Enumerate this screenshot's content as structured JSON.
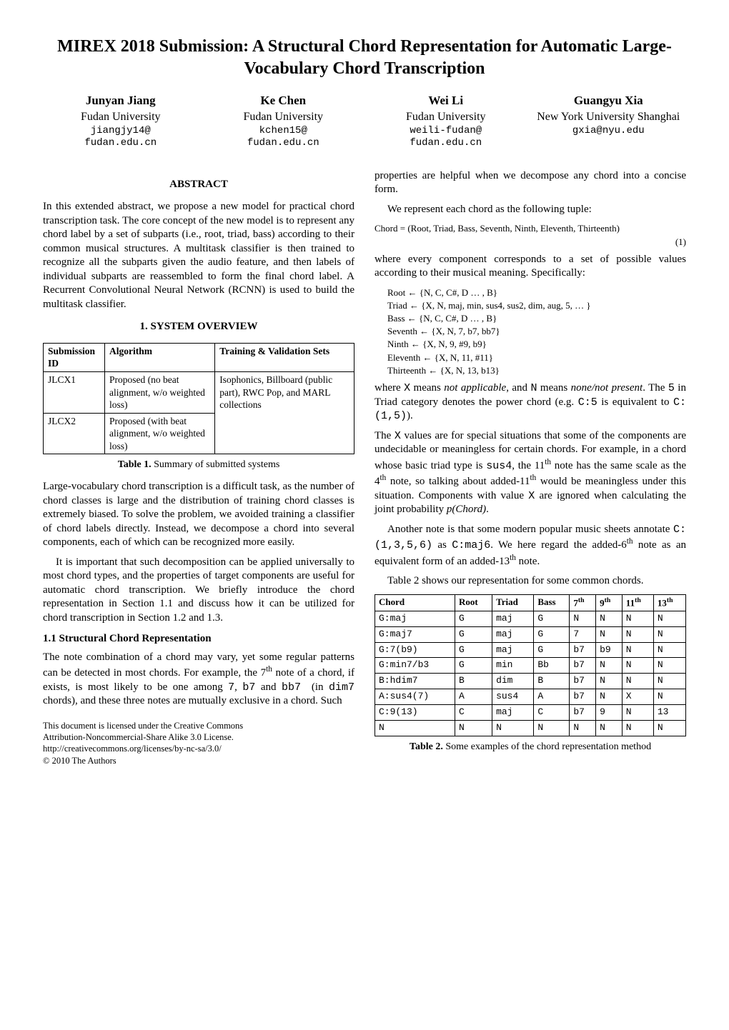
{
  "title": "MIREX 2018 Submission: A Structural Chord Representation for Automatic Large-Vocabulary Chord Transcription",
  "authors": [
    {
      "name": "Junyan Jiang",
      "affil": "Fudan University",
      "email1": "jiangjy14@",
      "email2": "fudan.edu.cn"
    },
    {
      "name": "Ke Chen",
      "affil": "Fudan University",
      "email1": "kchen15@",
      "email2": "fudan.edu.cn"
    },
    {
      "name": "Wei Li",
      "affil": "Fudan University",
      "email1": "weili-fudan@",
      "email2": "fudan.edu.cn"
    },
    {
      "name": "Guangyu Xia",
      "affil": "New York University Shanghai",
      "email1": "gxia@nyu.edu",
      "email2": ""
    }
  ],
  "abstract_head": "ABSTRACT",
  "abstract": "In this extended abstract, we propose a new model for practical chord transcription task. The core concept of the new model is to represent any chord label by a set of subparts (i.e., root, triad, bass) according to their common musical structures. A multitask classifier is then trained to recognize all the subparts given the audio feature, and then labels of individual subparts are reassembled to form the final chord label. A Recurrent Convolutional Neural Network (RCNN) is used to build the multitask classifier.",
  "s1_head": "1. SYSTEM OVERVIEW",
  "table1": {
    "headers": [
      "Submission ID",
      "Algorithm",
      "Training & Validation Sets"
    ],
    "rows": [
      {
        "id": "JLCX1",
        "alg": "Proposed (no beat alignment, w/o weighted loss)",
        "train": "Isophonics, Billboard (public part), RWC Pop, and MARL collections"
      },
      {
        "id": "JLCX2",
        "alg": "Proposed (with beat alignment, w/o weighted loss)",
        "train": ""
      }
    ],
    "caption": "Table 1. Summary of submitted systems"
  },
  "p1": "Large-vocabulary chord transcription is a difficult task, as the number of chord classes is large and the distribution of training chord classes is extremely biased. To solve the problem, we avoided training a classifier of chord labels directly. Instead, we decompose a chord into several components, each of which can be recognized more easily.",
  "p2": "It is important that such decomposition can be applied universally to most chord types, and the properties of target components are useful for automatic chord transcription. We briefly introduce the chord representation in Section 1.1 and discuss how it can be utilized for chord transcription in Section 1.2 and 1.3.",
  "s11_head": "1.1 Structural Chord Representation",
  "p3a": "The note combination of a chord may vary, yet some regular patterns can be detected in most chords. For example, the 7",
  "p3b": " note of a chord, if exists, is most likely to be one among ",
  "p3c": " chords), and these three notes are mutually exclusive in a chord. Such",
  "code_seven": "7",
  "code_b7": "b7",
  "code_bb7": "bb7",
  "code_dim7": "dim7",
  "footer1": "This document is licensed under the Creative Commons",
  "footer2": "Attribution-Noncommercial-Share Alike 3.0 License.",
  "footer3": "http://creativecommons.org/licenses/by-nc-sa/3.0/",
  "footer4": "© 2010 The Authors",
  "r_p1": "properties are helpful when we decompose any chord into a concise form.",
  "r_p2": "We represent each chord as the following tuple:",
  "eq1": "Chord = (Root, Triad, Bass, Seventh, Ninth, Eleventh, Thirteenth)",
  "eq1_num": "(1)",
  "r_p3": "where every component corresponds to a set of possible values according to their musical meaning. Specifically:",
  "eq_root": "Root ← {N, C, C#, D … , B}",
  "eq_triad": "Triad ← {X, N, maj, min, sus4, sus2, dim, aug, 5, … }",
  "eq_bass": "Bass ← {N, C, C#, D … , B}",
  "eq_seventh": "Seventh ← {X, N, 7, b7, bb7}",
  "eq_ninth": "Ninth ← {X, N, 9, #9, b9}",
  "eq_eleventh": "Eleventh ← {X, N, 11, #11}",
  "eq_thirteenth": "Thirteenth ← {X, N, 13, b13}",
  "r_p4a": "where ",
  "r_p4_x": "X",
  "r_p4b": " means ",
  "r_p4_na": "not applicable",
  "r_p4c": ", and ",
  "r_p4_n": "N",
  "r_p4d": " means ",
  "r_p4_np": "none/not present",
  "r_p4e": ". The ",
  "r_p4_5": "5",
  "r_p4f": " in Triad category denotes the power chord (e.g. ",
  "r_p4_c5": "C:5",
  "r_p4g": " is equivalent to ",
  "r_p4_c15": "C:(1,5)",
  "r_p4h": ").",
  "r_p5a": "The ",
  "r_p5_x": "X",
  "r_p5b": " values are for special situations that some of the components are undecidable or meaningless for certain chords. For example, in a chord whose basic triad type is ",
  "r_p5_sus4": "sus4",
  "r_p5c": ", the 11",
  "r_p5d": " note has the same scale as the 4",
  "r_p5e": " note, so talking about added-11",
  "r_p5f": " would be meaningless under this situation. Components with value ",
  "r_p5_x2": "X",
  "r_p5g": " are ignored when calculating the joint probability ",
  "r_p5_pc": "p(Chord)",
  "r_p5h": ".",
  "r_p6a": "Another note is that some modern popular music sheets annotate ",
  "r_p6_c1": "C:(1,3,5,6)",
  "r_p6b": " as ",
  "r_p6_c2": "C:maj6",
  "r_p6c": ". We here regard the added-6",
  "r_p6d": " note as an equivalent form of an added-13",
  "r_p6e": " note.",
  "r_p7": "Table 2 shows our representation for some common chords.",
  "table2": {
    "headers": [
      "Chord",
      "Root",
      "Triad",
      "Bass",
      "7th",
      "9th",
      "11th",
      "13th"
    ],
    "rows": [
      [
        "G:maj",
        "G",
        "maj",
        "G",
        "N",
        "N",
        "N",
        "N"
      ],
      [
        "G:maj7",
        "G",
        "maj",
        "G",
        "7",
        "N",
        "N",
        "N"
      ],
      [
        "G:7(b9)",
        "G",
        "maj",
        "G",
        "b7",
        "b9",
        "N",
        "N"
      ],
      [
        "G:min7/b3",
        "G",
        "min",
        "Bb",
        "b7",
        "N",
        "N",
        "N"
      ],
      [
        "B:hdim7",
        "B",
        "dim",
        "B",
        "b7",
        "N",
        "N",
        "N"
      ],
      [
        "A:sus4(7)",
        "A",
        "sus4",
        "A",
        "b7",
        "N",
        "X",
        "N"
      ],
      [
        "C:9(13)",
        "C",
        "maj",
        "C",
        "b7",
        "9",
        "N",
        "13"
      ],
      [
        "N",
        "N",
        "N",
        "N",
        "N",
        "N",
        "N",
        "N"
      ]
    ],
    "caption": "Table 2. Some examples of the chord representation method"
  }
}
